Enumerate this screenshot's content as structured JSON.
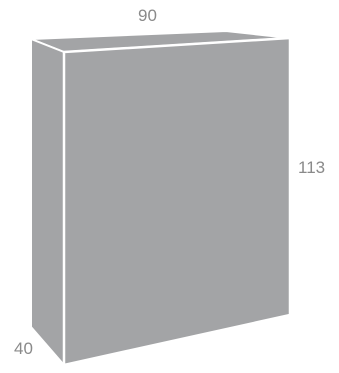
{
  "dimensions": {
    "width": "90",
    "height": "113",
    "depth": "40"
  },
  "colors": {
    "box_fill": "#a3a4a6",
    "box_edge": "#ffffff",
    "label_text": "#8a8a8a",
    "background": "#ffffff"
  }
}
